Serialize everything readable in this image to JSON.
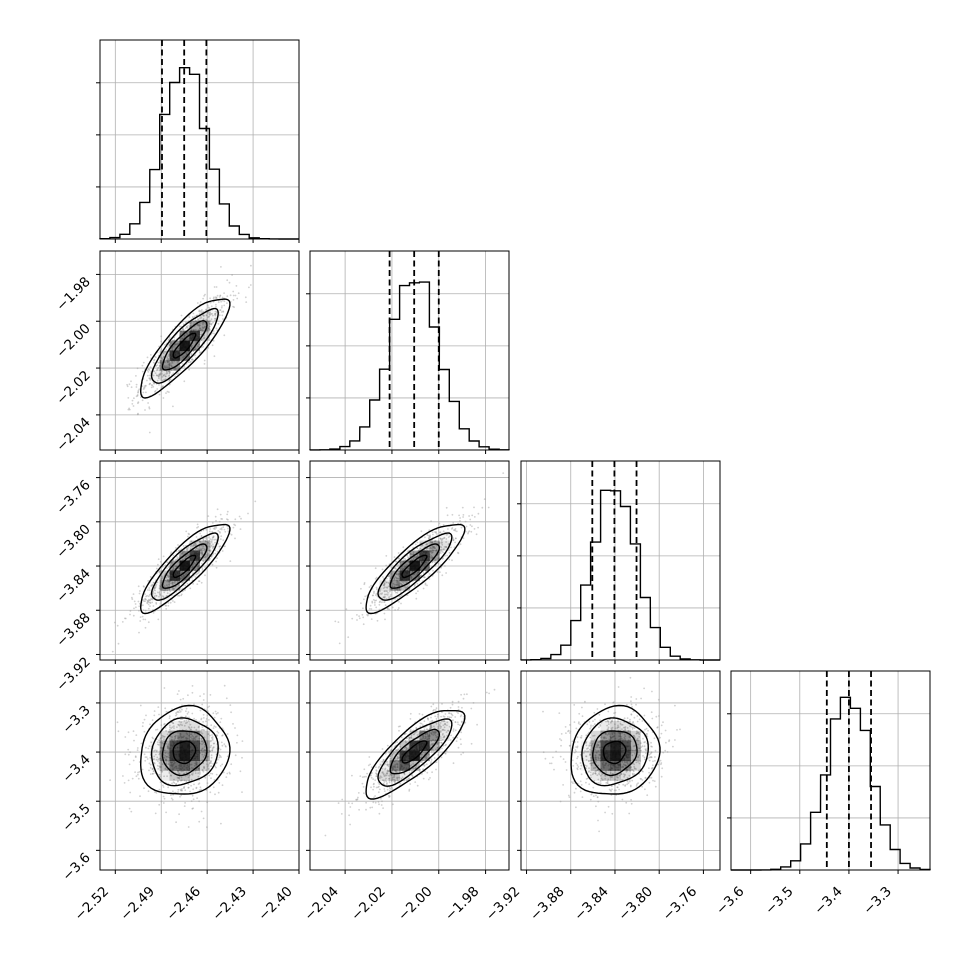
{
  "chart_data": {
    "type": "corner",
    "title": "",
    "grid": true,
    "n_params": 4,
    "quantile_line_style": "dashed",
    "colors": {
      "axes": "#000000",
      "grid": "#b0b0b0",
      "density": "#000000",
      "points": "#9a9a9a"
    },
    "params": [
      {
        "median": -2.475,
        "q16": -2.4895,
        "q84": -2.4605,
        "sigma": 0.0145,
        "range": [
          -2.53,
          -2.4
        ],
        "ticks": [
          -2.52,
          -2.49,
          -2.46,
          -2.43,
          -2.4
        ],
        "tick_labels": [
          "−2.52",
          "−2.49",
          "−2.46",
          "−2.43",
          "−2.40"
        ]
      },
      {
        "median": -2.0105,
        "q16": -2.021,
        "q84": -2.0,
        "sigma": 0.0105,
        "range": [
          -2.055,
          -1.97
        ],
        "ticks": [
          -2.04,
          -2.02,
          -2.0,
          -1.98
        ],
        "tick_labels": [
          "−2.04",
          "−2.02",
          "−2.00",
          "−1.98"
        ]
      },
      {
        "median": -3.8405,
        "q16": -3.8605,
        "q84": -3.8205,
        "sigma": 0.02,
        "range": [
          -3.925,
          -3.745
        ],
        "ticks": [
          -3.92,
          -3.88,
          -3.84,
          -3.8,
          -3.76
        ],
        "tick_labels": [
          "−3.92",
          "−3.88",
          "−3.84",
          "−3.80",
          "−3.76"
        ]
      },
      {
        "median": -3.4,
        "q16": -3.445,
        "q84": -3.355,
        "sigma": 0.045,
        "range": [
          -3.64,
          -3.235
        ],
        "ticks": [
          -3.6,
          -3.5,
          -3.4,
          -3.3
        ],
        "tick_labels": [
          "−3.6",
          "−3.5",
          "−3.4",
          "−3.3"
        ]
      }
    ],
    "histograms": [
      {
        "param": 0,
        "bins": 20,
        "peak": 1.0
      },
      {
        "param": 1,
        "bins": 20,
        "peak": 1.0
      },
      {
        "param": 2,
        "bins": 20,
        "peak": 1.0
      },
      {
        "param": 3,
        "bins": 20,
        "peak": 1.0
      }
    ],
    "pairs": [
      {
        "x": 0,
        "y": 1,
        "correlation": 0.85
      },
      {
        "x": 0,
        "y": 2,
        "correlation": 0.85
      },
      {
        "x": 1,
        "y": 2,
        "correlation": 0.85
      },
      {
        "x": 0,
        "y": 3,
        "correlation": 0.1
      },
      {
        "x": 1,
        "y": 3,
        "correlation": 0.8
      },
      {
        "x": 2,
        "y": 3,
        "correlation": 0.1
      }
    ],
    "contour_levels_sigma": [
      0.5,
      1.0,
      1.5,
      2.0
    ]
  }
}
